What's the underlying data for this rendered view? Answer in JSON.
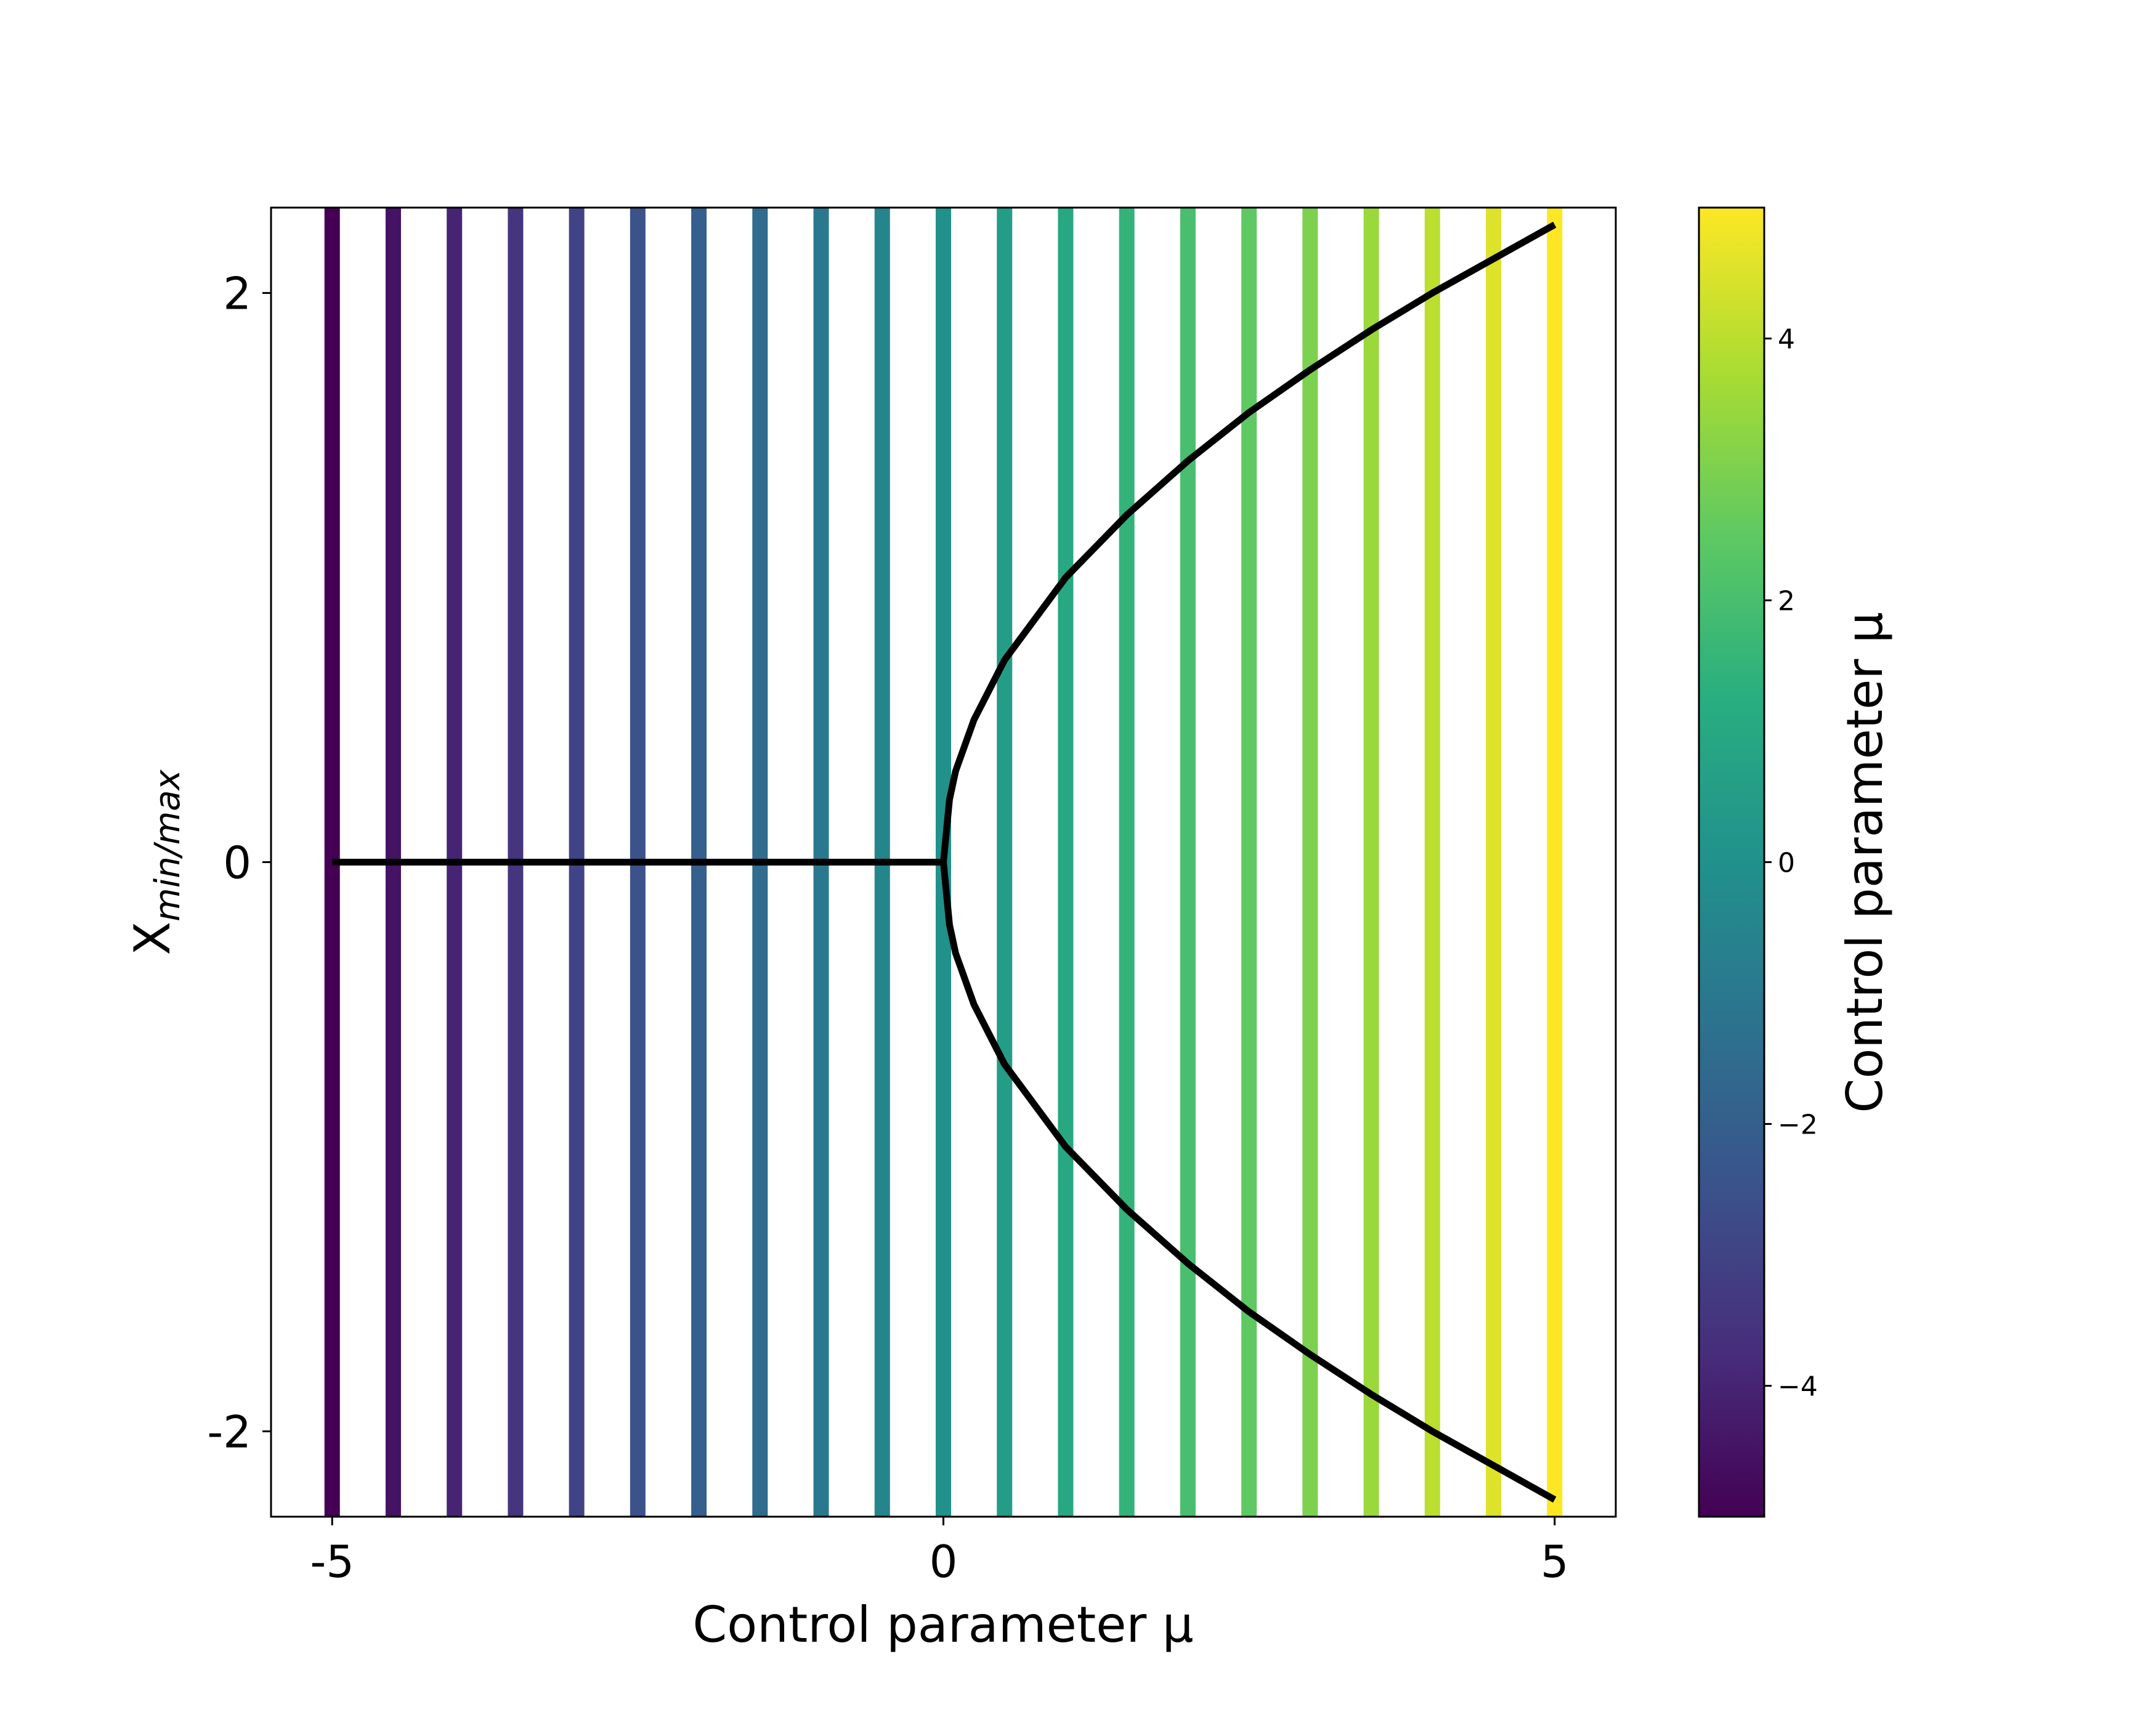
{
  "chart_data": {
    "type": "line",
    "xlabel": "Control parameter μ",
    "ylabel": "X_min/max",
    "ylabel_parts": {
      "base": "X",
      "sub": "min/max"
    },
    "xlim": [
      -5.5,
      5.5
    ],
    "ylim": [
      -2.3,
      2.3
    ],
    "xticks": [
      -5,
      0,
      5
    ],
    "xtick_labels": [
      "-5",
      "0",
      "5"
    ],
    "yticks": [
      -2,
      0,
      2
    ],
    "ytick_labels": [
      "-2",
      "0",
      "2"
    ],
    "grid": false,
    "vlines": {
      "mu": [
        -5,
        -4.5,
        -4,
        -3.5,
        -3,
        -2.5,
        -2,
        -1.5,
        -1,
        -0.5,
        0,
        0.5,
        1,
        1.5,
        2,
        2.5,
        3,
        3.5,
        4,
        4.5,
        5
      ],
      "colormap": "viridis",
      "color_range": [
        -5,
        5
      ]
    },
    "series": [
      {
        "color": "#000000",
        "x": [
          -5,
          -4,
          -3,
          -2,
          -1,
          0
        ],
        "y": [
          0,
          0,
          0,
          0,
          0,
          0
        ]
      },
      {
        "color": "#000000",
        "x": [
          0,
          0.05,
          0.1,
          0.25,
          0.5,
          1,
          1.5,
          2,
          2.5,
          3,
          3.5,
          4,
          4.5,
          5
        ],
        "y": [
          0,
          0.22,
          0.32,
          0.5,
          0.71,
          1.0,
          1.22,
          1.41,
          1.58,
          1.73,
          1.87,
          2.0,
          2.12,
          2.24
        ]
      },
      {
        "color": "#000000",
        "x": [
          0,
          0.05,
          0.1,
          0.25,
          0.5,
          1,
          1.5,
          2,
          2.5,
          3,
          3.5,
          4,
          4.5,
          5
        ],
        "y": [
          0,
          -0.22,
          -0.32,
          -0.5,
          -0.71,
          -1.0,
          -1.22,
          -1.41,
          -1.58,
          -1.73,
          -1.87,
          -2.0,
          -2.12,
          -2.24
        ]
      }
    ],
    "colorbar": {
      "label": "Control parameter μ",
      "range": [
        -5,
        5
      ],
      "ticks": [
        -4,
        -2,
        0,
        2,
        4
      ],
      "tick_labels": [
        "−4",
        "−2",
        "0",
        "2",
        "4"
      ],
      "colormap": "viridis"
    }
  }
}
